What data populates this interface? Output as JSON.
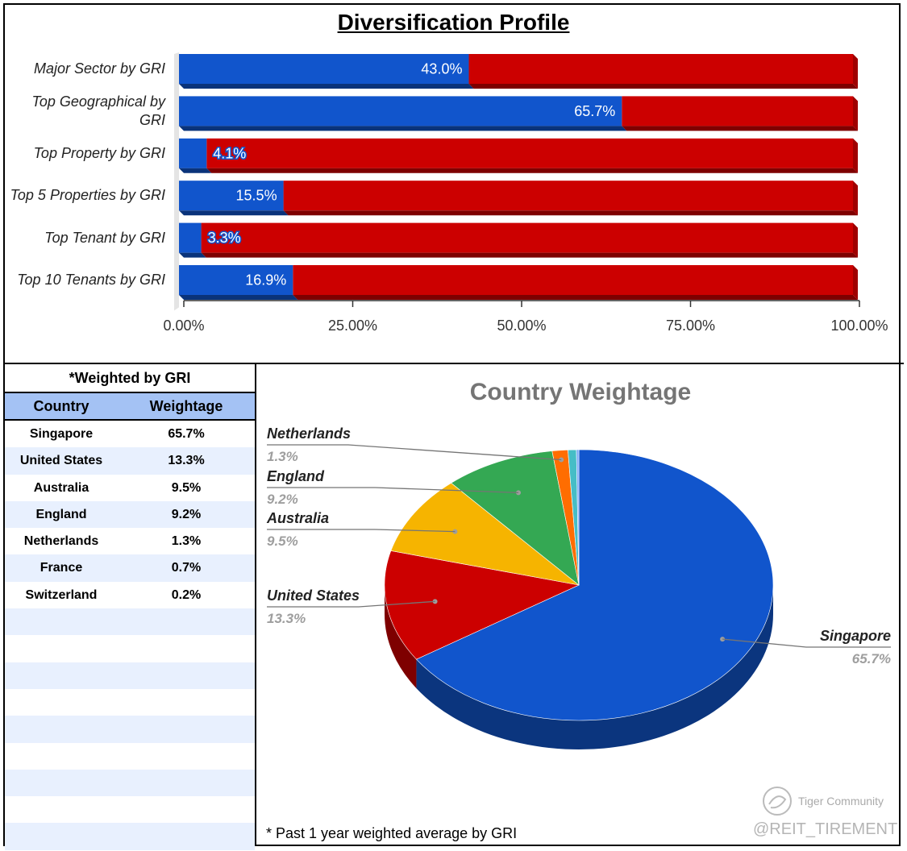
{
  "chart_data": [
    {
      "type": "bar",
      "stacked": true,
      "orientation": "horizontal",
      "title": "Diversification Profile",
      "categories": [
        "Major Sector by GRI",
        "Top Geographical by GRI",
        "Top Property by GRI",
        "Top 5 Properties by GRI",
        "Top Tenant by GRI",
        "Top 10 Tenants by GRI"
      ],
      "values": [
        43.0,
        65.7,
        4.1,
        15.5,
        3.3,
        16.9
      ],
      "data_labels": [
        "43.0%",
        "65.7%",
        "4.1%",
        "15.5%",
        "3.3%",
        "16.9%"
      ],
      "xlim": [
        0,
        100
      ],
      "xticks": [
        "0.00%",
        "25.00%",
        "50.00%",
        "75.00%",
        "100.00%"
      ],
      "colors": {
        "value": "#1155cc",
        "remainder": "#cc0000"
      },
      "grid": false,
      "legend": "none"
    },
    {
      "type": "pie",
      "title": "Country Weightage",
      "labels": [
        "Singapore",
        "United States",
        "Australia",
        "England",
        "Netherlands",
        "France",
        "Switzerland"
      ],
      "values": [
        65.7,
        13.3,
        9.5,
        9.2,
        1.3,
        0.7,
        0.2
      ],
      "display_values": [
        "65.7%",
        "13.3%",
        "9.5%",
        "9.2%",
        "1.3%",
        "",
        ""
      ],
      "colors": [
        "#1155cc",
        "#cc0000",
        "#f6b400",
        "#34a853",
        "#ff6d01",
        "#46bdc6",
        "#7baaf7"
      ],
      "style": "3d"
    }
  ],
  "table": {
    "note": "*Weighted by GRI",
    "headers": [
      "Country",
      "Weightage"
    ],
    "rows": [
      [
        "Singapore",
        "65.7%"
      ],
      [
        "United States",
        "13.3%"
      ],
      [
        "Australia",
        "9.5%"
      ],
      [
        "England",
        "9.2%"
      ],
      [
        "Netherlands",
        "1.3%"
      ],
      [
        "France",
        "0.7%"
      ],
      [
        "Switzerland",
        "0.2%"
      ]
    ],
    "empty_rows": 9
  },
  "footnote": "* Past 1 year weighted average by GRI",
  "watermark": {
    "brand": "Tiger Community",
    "handle": "@REIT_TIREMENT"
  }
}
